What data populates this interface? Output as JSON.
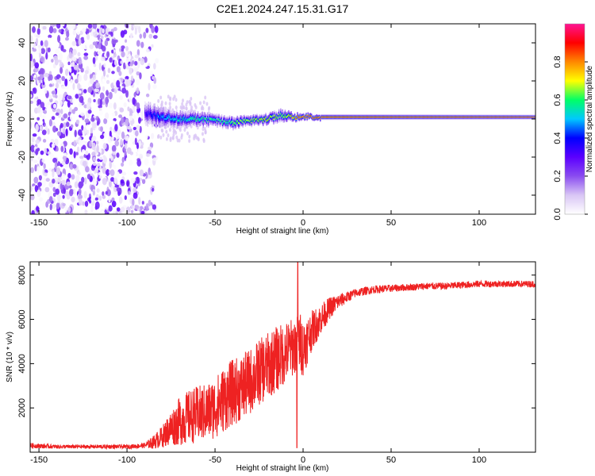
{
  "title": "C2E1.2024.247.15.31.G17",
  "chart_data": [
    {
      "type": "heatmap",
      "xlabel": "Height of straight line (km)",
      "ylabel": "Frequency (Hz)",
      "xlim": [
        -155,
        132
      ],
      "ylim": [
        -50,
        50
      ],
      "x_ticks": [
        -150,
        -100,
        -50,
        0,
        50,
        100
      ],
      "y_ticks": [
        -40,
        -20,
        0,
        20,
        40
      ],
      "colorbar": {
        "label": "Normalized spectral amplitude",
        "range": [
          0,
          1
        ],
        "ticks": [
          0.0,
          0.2,
          0.4,
          0.6,
          0.8
        ],
        "colors": [
          "#ffffff",
          "#d9c6f5",
          "#8a4cf0",
          "#5b00ff",
          "#0000ff",
          "#00c8ff",
          "#00ff66",
          "#ffff00",
          "#ff8800",
          "#ff0000",
          "#ff1493"
        ]
      },
      "noise_region_x": [
        -155,
        -83
      ],
      "signal_track": [
        {
          "x": -90,
          "f": 3,
          "spread": 6,
          "amp": 0.3
        },
        {
          "x": -80,
          "f": 1,
          "spread": 5,
          "amp": 0.45
        },
        {
          "x": -70,
          "f": 0,
          "spread": 4,
          "amp": 0.5
        },
        {
          "x": -60,
          "f": 0,
          "spread": 3.5,
          "amp": 0.55
        },
        {
          "x": -50,
          "f": -1,
          "spread": 3,
          "amp": 0.55
        },
        {
          "x": -40,
          "f": -2,
          "spread": 3,
          "amp": 0.6
        },
        {
          "x": -30,
          "f": -1,
          "spread": 2.5,
          "amp": 0.65
        },
        {
          "x": -20,
          "f": 0,
          "spread": 2.5,
          "amp": 0.7
        },
        {
          "x": -12,
          "f": 2,
          "spread": 3,
          "amp": 0.6
        },
        {
          "x": -5,
          "f": 1,
          "spread": 2,
          "amp": 0.8
        },
        {
          "x": 5,
          "f": 1,
          "spread": 1.5,
          "amp": 0.9
        },
        {
          "x": 132,
          "f": 1,
          "spread": 1.2,
          "amp": 0.95
        }
      ]
    },
    {
      "type": "line",
      "xlabel": "Height of straight line (km)",
      "ylabel": "SNR (10 * v/v)",
      "xlim": [
        -155,
        132
      ],
      "ylim": [
        0,
        8600
      ],
      "x_ticks": [
        -150,
        -100,
        -50,
        0,
        50,
        100
      ],
      "y_ticks": [
        2000,
        4000,
        6000,
        8000
      ],
      "line_color": "#ee2222",
      "series": [
        {
          "x": [
            -155,
            -140,
            -120,
            -100,
            -90,
            -85,
            -80,
            -75,
            -70,
            -65,
            -60,
            -55,
            -50,
            -45,
            -40,
            -35,
            -30,
            -25,
            -20,
            -15,
            -10,
            -5,
            -2,
            0,
            5,
            10,
            15,
            20,
            25,
            30,
            40,
            50,
            60,
            70,
            80,
            90,
            100,
            110,
            120,
            132
          ],
          "values": [
            300,
            250,
            250,
            250,
            300,
            450,
            700,
            1100,
            1400,
            1600,
            1700,
            1800,
            2000,
            2400,
            2700,
            2900,
            3200,
            3600,
            3900,
            4200,
            4500,
            4800,
            5000,
            4700,
            5500,
            6000,
            6500,
            6800,
            7000,
            7200,
            7350,
            7400,
            7450,
            7500,
            7500,
            7550,
            7600,
            7600,
            7600,
            7600
          ],
          "amplitude": [
            120,
            90,
            90,
            90,
            120,
            300,
            500,
            800,
            1100,
            1200,
            1300,
            1300,
            1400,
            1500,
            1500,
            1500,
            1500,
            1500,
            1500,
            1500,
            1400,
            1300,
            1400,
            1300,
            900,
            700,
            500,
            350,
            250,
            200,
            180,
            170,
            160,
            160,
            160,
            160,
            160,
            150,
            150,
            150
          ]
        }
      ]
    }
  ]
}
